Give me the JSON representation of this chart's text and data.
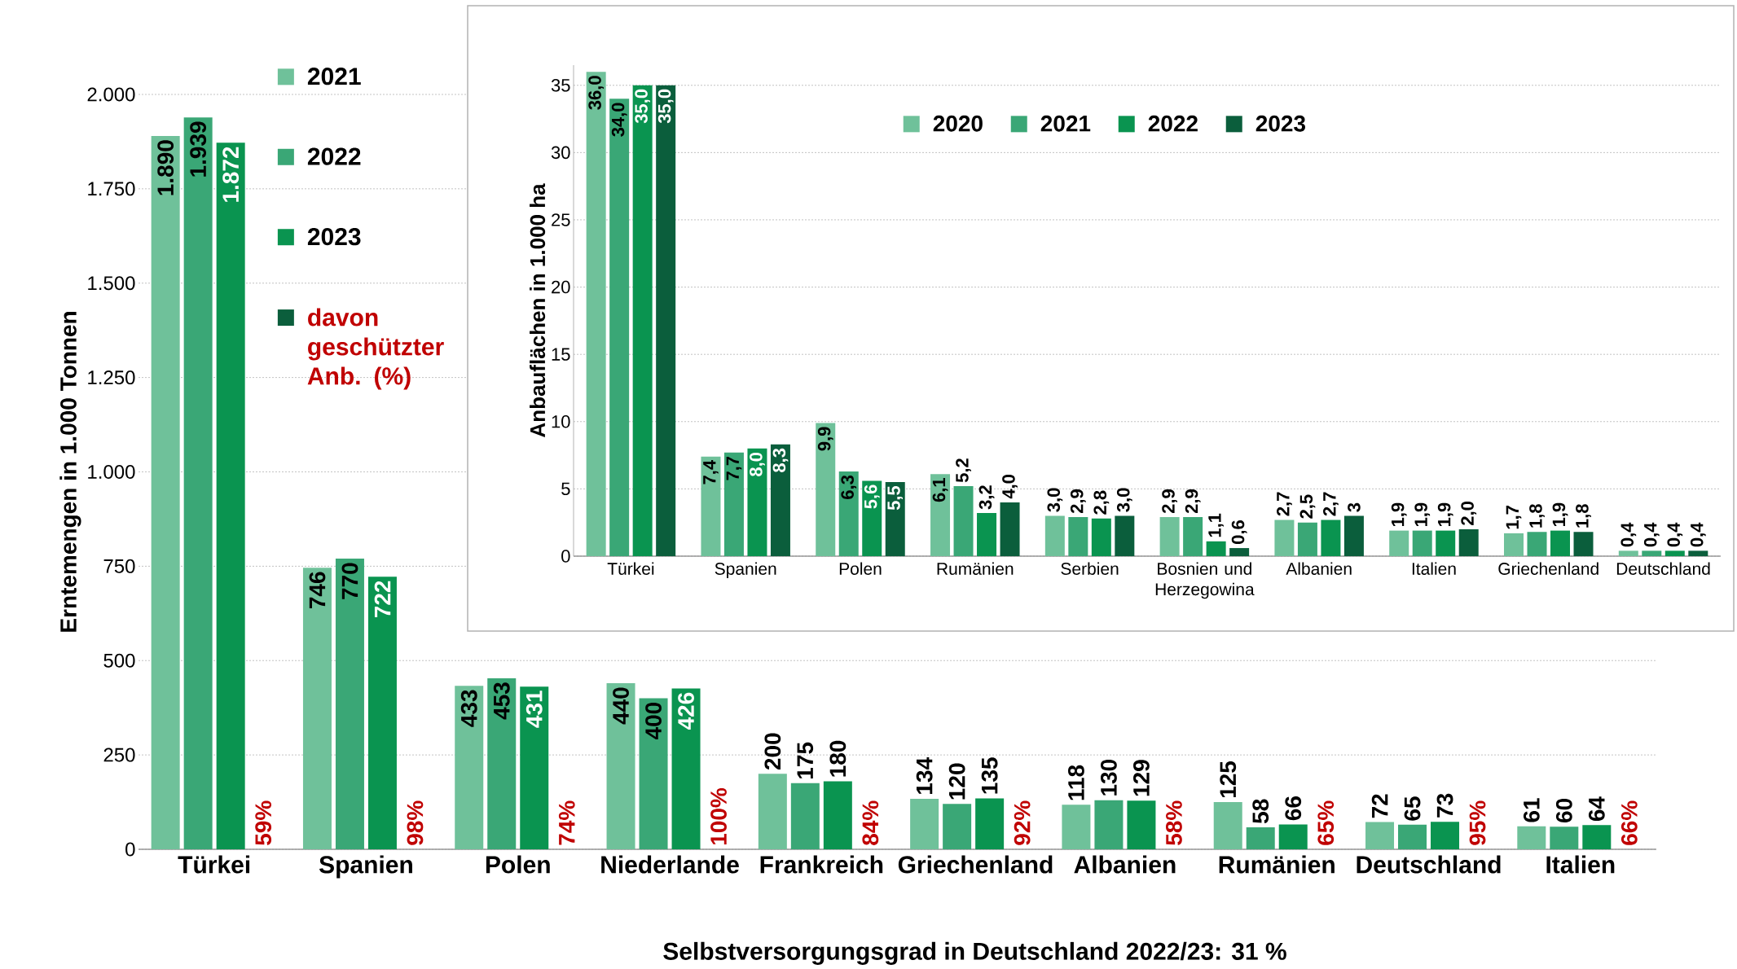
{
  "chart_data": [
    {
      "type": "bar",
      "ylabel": "Erntemengen in 1.000 Tonnen",
      "categories": [
        "Türkei",
        "Spanien",
        "Polen",
        "Niederlande",
        "Frankreich",
        "Griechenland",
        "Albanien",
        "Rumänien",
        "Deutschland",
        "Italien"
      ],
      "series": [
        {
          "name": "2021",
          "color": "#6fc19a",
          "values": [
            1890,
            746,
            433,
            440,
            200,
            134,
            118,
            125,
            72,
            61
          ],
          "value_labels": [
            "1.890",
            "746",
            "433",
            "440",
            "200",
            "134",
            "118",
            "125",
            "72",
            "61"
          ]
        },
        {
          "name": "2022",
          "color": "#3aa776",
          "values": [
            1939,
            770,
            453,
            400,
            175,
            120,
            130,
            58,
            65,
            60
          ],
          "value_labels": [
            "1.939",
            "770",
            "453",
            "400",
            "175",
            "120",
            "130",
            "58",
            "65",
            "60"
          ]
        },
        {
          "name": "2023",
          "color": "#0a9450",
          "values": [
            1872,
            722,
            431,
            426,
            180,
            135,
            129,
            66,
            73,
            64
          ],
          "value_labels": [
            "1.872",
            "722",
            "431",
            "426",
            "180",
            "135",
            "129",
            "66",
            "73",
            "64"
          ]
        },
        {
          "name": "davon geschützter Anb. (%)",
          "color": "#0b5e3c",
          "values": [
            null,
            null,
            null,
            null,
            null,
            null,
            null,
            null,
            null,
            null
          ]
        }
      ],
      "ylim": [
        0,
        2000
      ],
      "yticks": [
        0,
        250,
        500,
        750,
        {
          "value": 1000,
          "label": "1.000"
        },
        {
          "value": 1250,
          "label": "1.250"
        },
        {
          "value": 1500,
          "label": "1.500"
        },
        {
          "value": 1750,
          "label": "1.750"
        },
        {
          "value": 2000,
          "label": "2.000"
        }
      ],
      "grid": "y",
      "legend": "top left",
      "annotations": [
        "Selbstversorgungsgrad in Deutschland 2022/23:  31 %",
        {
          "text": "59%",
          "x": "Türkei",
          "y": 0
        },
        {
          "text": "98%",
          "x": "Spanien",
          "y": 0
        },
        {
          "text": "74%",
          "x": "Polen",
          "y": 0
        },
        {
          "text": "100%",
          "x": "Niederlande",
          "y": 0
        },
        {
          "text": "84%",
          "x": "Frankreich",
          "y": 0
        },
        {
          "text": "92%",
          "x": "Griechenland",
          "y": 0
        },
        {
          "text": "58%",
          "x": "Albanien",
          "y": 0
        },
        {
          "text": "65%",
          "x": "Rumänien",
          "y": 0
        },
        {
          "text": "95%",
          "x": "Deutschland",
          "y": 0
        },
        {
          "text": "66%",
          "x": "Italien",
          "y": 0
        }
      ]
    },
    {
      "type": "bar",
      "ylabel": "Anbauflächen in 1.000 ha",
      "categories": [
        "Türkei",
        "Spanien",
        "Polen",
        "Rumänien",
        "Serbien",
        "Bosnien und Herzegowina",
        "Albanien",
        "Italien",
        "Griechenland",
        "Deutschland"
      ],
      "series": [
        {
          "name": "2020",
          "color": "#6fc19a",
          "values": [
            36.0,
            7.4,
            9.9,
            6.1,
            3.0,
            2.9,
            2.7,
            1.9,
            1.7,
            0.4
          ],
          "value_labels": [
            "36,0",
            "7,4",
            "9,9",
            "6,1",
            "3,0",
            "2,9",
            "2,7",
            "1,9",
            "1,7",
            "0,4"
          ]
        },
        {
          "name": "2021",
          "color": "#3aa776",
          "values": [
            34.0,
            7.7,
            6.3,
            5.2,
            2.9,
            2.9,
            2.5,
            1.9,
            1.8,
            0.4
          ],
          "value_labels": [
            "34,0",
            "7,7",
            "6,3",
            "5,2",
            "2,9",
            "2,9",
            "2,5",
            "1,9",
            "1,8",
            "0,4"
          ]
        },
        {
          "name": "2022",
          "color": "#0a9450",
          "values": [
            35.0,
            8.0,
            5.6,
            3.2,
            2.8,
            1.1,
            2.7,
            1.9,
            1.9,
            0.4
          ],
          "value_labels": [
            "35,0",
            "8,0",
            "5,6",
            "3,2",
            "2,8",
            "1,1",
            "2,7",
            "1,9",
            "1,9",
            "0,4"
          ]
        },
        {
          "name": "2023",
          "color": "#0b5e3c",
          "values": [
            35.0,
            8.3,
            5.5,
            4.0,
            3.0,
            0.6,
            3,
            2.0,
            1.8,
            0.4
          ],
          "value_labels": [
            "35,0",
            "8,3",
            "5,5",
            "4,0",
            "3,0",
            "0,6",
            "3",
            "2,0",
            "1,8",
            "0,4"
          ]
        }
      ],
      "ylim": [
        0,
        36.5
      ],
      "yticks": [
        0,
        5,
        10,
        15,
        20,
        25,
        30,
        35
      ],
      "grid": "y",
      "legend": "top"
    }
  ]
}
